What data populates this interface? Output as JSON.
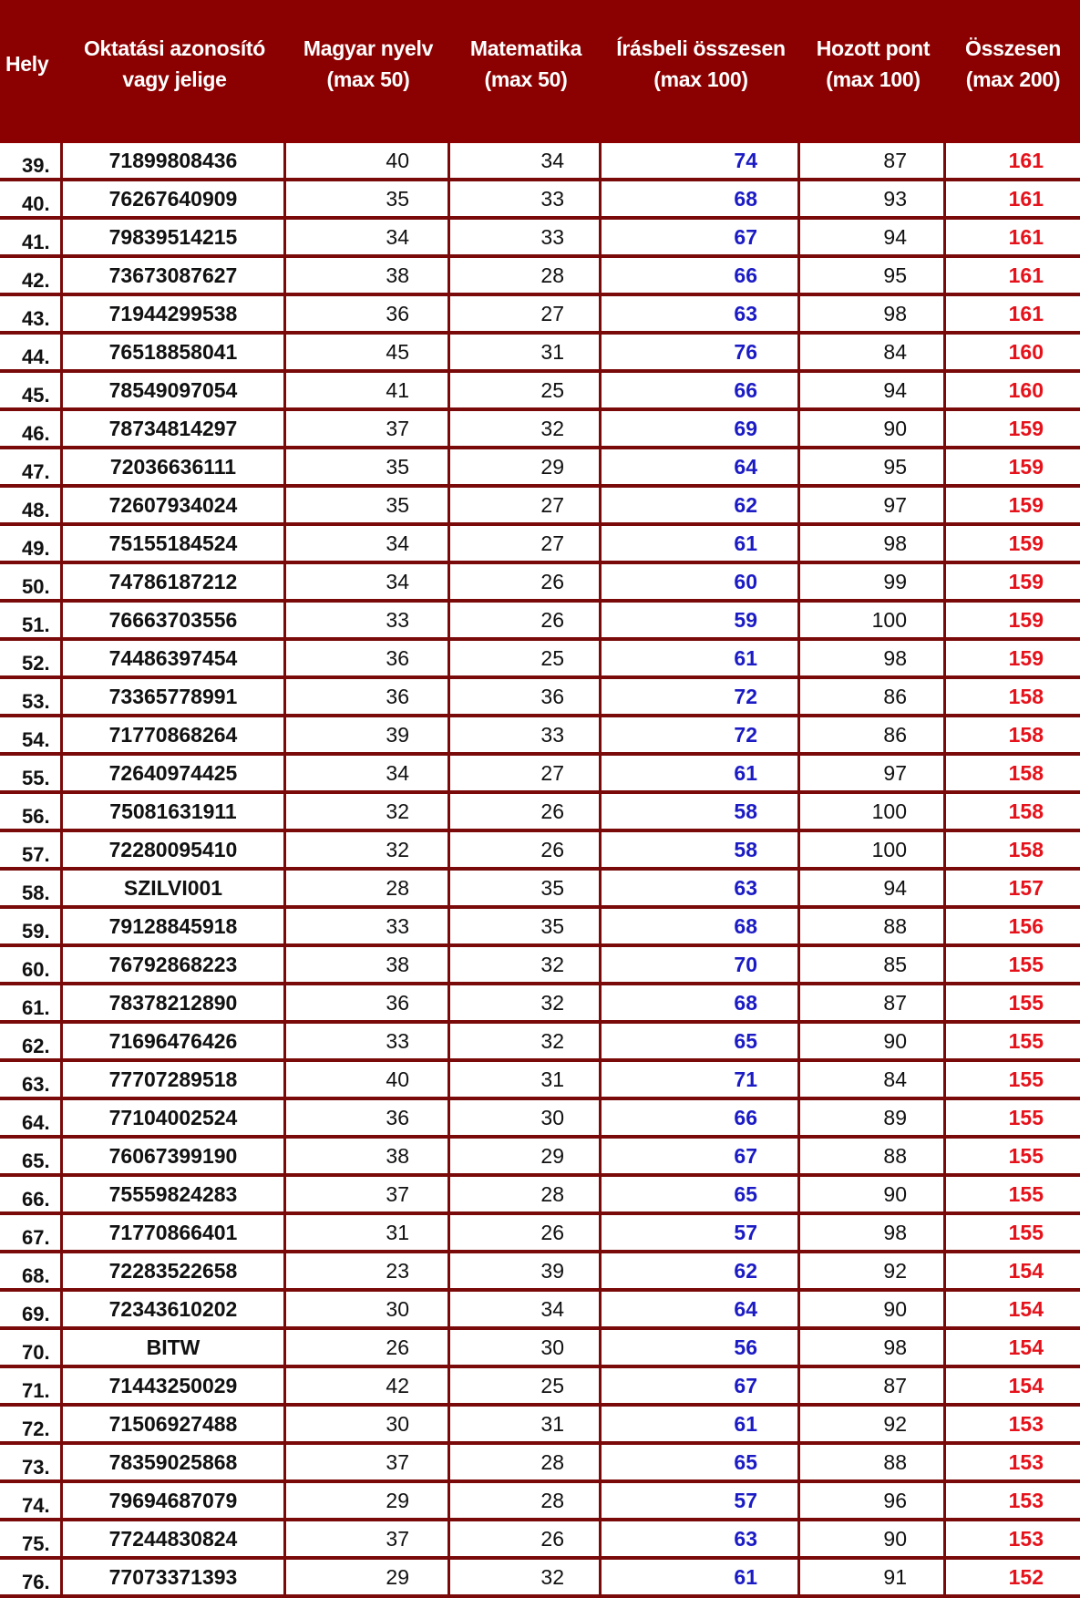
{
  "colors": {
    "header_bg": "#8b0000",
    "border": "#7a0a0a",
    "written_total": "#1b1bc4",
    "grand_total": "#e5121b"
  },
  "header": {
    "hely": "Hely",
    "id": "Oktatási azonosító vagy jelige",
    "magyar": "Magyar nyelv (max 50)",
    "matek": "Matematika (max 50)",
    "irasbeli": "Írásbeli összesen (max 100)",
    "hozott": "Hozott pont (max 100)",
    "osszesen": "Összesen (max 200)"
  },
  "rows": [
    [
      "39.",
      "71899808436",
      "40",
      "34",
      "74",
      "87",
      "161"
    ],
    [
      "40.",
      "76267640909",
      "35",
      "33",
      "68",
      "93",
      "161"
    ],
    [
      "41.",
      "79839514215",
      "34",
      "33",
      "67",
      "94",
      "161"
    ],
    [
      "42.",
      "73673087627",
      "38",
      "28",
      "66",
      "95",
      "161"
    ],
    [
      "43.",
      "71944299538",
      "36",
      "27",
      "63",
      "98",
      "161"
    ],
    [
      "44.",
      "76518858041",
      "45",
      "31",
      "76",
      "84",
      "160"
    ],
    [
      "45.",
      "78549097054",
      "41",
      "25",
      "66",
      "94",
      "160"
    ],
    [
      "46.",
      "78734814297",
      "37",
      "32",
      "69",
      "90",
      "159"
    ],
    [
      "47.",
      "72036636111",
      "35",
      "29",
      "64",
      "95",
      "159"
    ],
    [
      "48.",
      "72607934024",
      "35",
      "27",
      "62",
      "97",
      "159"
    ],
    [
      "49.",
      "75155184524",
      "34",
      "27",
      "61",
      "98",
      "159"
    ],
    [
      "50.",
      "74786187212",
      "34",
      "26",
      "60",
      "99",
      "159"
    ],
    [
      "51.",
      "76663703556",
      "33",
      "26",
      "59",
      "100",
      "159"
    ],
    [
      "52.",
      "74486397454",
      "36",
      "25",
      "61",
      "98",
      "159"
    ],
    [
      "53.",
      "73365778991",
      "36",
      "36",
      "72",
      "86",
      "158"
    ],
    [
      "54.",
      "71770868264",
      "39",
      "33",
      "72",
      "86",
      "158"
    ],
    [
      "55.",
      "72640974425",
      "34",
      "27",
      "61",
      "97",
      "158"
    ],
    [
      "56.",
      "75081631911",
      "32",
      "26",
      "58",
      "100",
      "158"
    ],
    [
      "57.",
      "72280095410",
      "32",
      "26",
      "58",
      "100",
      "158"
    ],
    [
      "58.",
      "SZILVI001",
      "28",
      "35",
      "63",
      "94",
      "157"
    ],
    [
      "59.",
      "79128845918",
      "33",
      "35",
      "68",
      "88",
      "156"
    ],
    [
      "60.",
      "76792868223",
      "38",
      "32",
      "70",
      "85",
      "155"
    ],
    [
      "61.",
      "78378212890",
      "36",
      "32",
      "68",
      "87",
      "155"
    ],
    [
      "62.",
      "71696476426",
      "33",
      "32",
      "65",
      "90",
      "155"
    ],
    [
      "63.",
      "77707289518",
      "40",
      "31",
      "71",
      "84",
      "155"
    ],
    [
      "64.",
      "77104002524",
      "36",
      "30",
      "66",
      "89",
      "155"
    ],
    [
      "65.",
      "76067399190",
      "38",
      "29",
      "67",
      "88",
      "155"
    ],
    [
      "66.",
      "75559824283",
      "37",
      "28",
      "65",
      "90",
      "155"
    ],
    [
      "67.",
      "71770866401",
      "31",
      "26",
      "57",
      "98",
      "155"
    ],
    [
      "68.",
      "72283522658",
      "23",
      "39",
      "62",
      "92",
      "154"
    ],
    [
      "69.",
      "72343610202",
      "30",
      "34",
      "64",
      "90",
      "154"
    ],
    [
      "70.",
      "BITW",
      "26",
      "30",
      "56",
      "98",
      "154"
    ],
    [
      "71.",
      "71443250029",
      "42",
      "25",
      "67",
      "87",
      "154"
    ],
    [
      "72.",
      "71506927488",
      "30",
      "31",
      "61",
      "92",
      "153"
    ],
    [
      "73.",
      "78359025868",
      "37",
      "28",
      "65",
      "88",
      "153"
    ],
    [
      "74.",
      "79694687079",
      "29",
      "28",
      "57",
      "96",
      "153"
    ],
    [
      "75.",
      "77244830824",
      "37",
      "26",
      "63",
      "90",
      "153"
    ],
    [
      "76.",
      "77073371393",
      "29",
      "32",
      "61",
      "91",
      "152"
    ]
  ]
}
